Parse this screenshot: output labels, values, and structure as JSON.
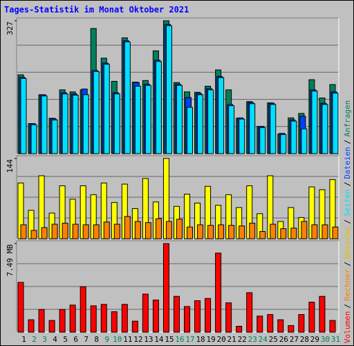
{
  "chart_data": [
    {
      "type": "bar",
      "title": "Tages-Statistik im Monat Oktober 2021",
      "ylim": [
        0,
        327
      ],
      "yticks": [
        327
      ],
      "series": [
        {
          "name": "Anfragen",
          "color": "#00805c",
          "values": [
            194,
            74,
            145,
            87,
            157,
            152,
            157,
            308,
            235,
            178,
            285,
            176,
            180,
            253,
            327,
            175,
            152,
            151,
            166,
            206,
            157,
            87,
            128,
            67,
            125,
            48,
            88,
            99,
            182,
            137,
            170
          ]
        },
        {
          "name": "Dateien",
          "color": "#0040ff",
          "values": [
            188,
            74,
            145,
            86,
            150,
            147,
            159,
            205,
            223,
            150,
            278,
            175,
            171,
            230,
            318,
            171,
            138,
            148,
            160,
            190,
            121,
            88,
            126,
            67,
            124,
            50,
            83,
            92,
            157,
            124,
            152
          ]
        },
        {
          "name": "Seiten",
          "color": "#00e0ff",
          "values": [
            185,
            71,
            142,
            83,
            147,
            144,
            145,
            202,
            220,
            147,
            275,
            166,
            168,
            227,
            315,
            168,
            114,
            145,
            157,
            187,
            118,
            85,
            123,
            64,
            121,
            47,
            80,
            61,
            154,
            121,
            149
          ]
        }
      ]
    },
    {
      "type": "bar",
      "ylim": [
        0,
        144
      ],
      "yticks": [
        144
      ],
      "series": [
        {
          "name": "Besuche",
          "color": "#ffff00",
          "values": [
            100,
            51,
            113,
            46,
            95,
            71,
            95,
            79,
            100,
            65,
            98,
            54,
            108,
            66,
            144,
            58,
            80,
            64,
            94,
            60,
            79,
            56,
            95,
            45,
            113,
            31,
            56,
            38,
            93,
            88,
            106
          ]
        },
        {
          "name": "Rechner",
          "color": "#ff8000",
          "values": [
            25,
            15,
            20,
            26,
            28,
            26,
            25,
            25,
            30,
            26,
            40,
            31,
            29,
            36,
            31,
            35,
            21,
            25,
            24,
            25,
            24,
            23,
            28,
            13,
            26,
            18,
            19,
            31,
            25,
            25,
            21
          ]
        }
      ]
    },
    {
      "type": "bar",
      "ylim": [
        0,
        7.49
      ],
      "yticks": [
        {
          "value": 7.49,
          "label": "7.49 MB"
        }
      ],
      "series": [
        {
          "name": "Volumen",
          "color": "#ff0000",
          "values": [
            4.21,
            1.05,
            1.92,
            0.99,
            1.92,
            2.29,
            3.84,
            2.23,
            2.35,
            1.73,
            2.35,
            0.93,
            3.22,
            2.72,
            7.49,
            3.03,
            2.17,
            2.66,
            2.85,
            6.69,
            2.48,
            0.5,
            3.34,
            1.36,
            1.49,
            1.05,
            0.56,
            1.49,
            2.54,
            3.03,
            0.99
          ]
        }
      ],
      "categories": [
        "1",
        "2",
        "3",
        "4",
        "5",
        "6",
        "7",
        "8",
        "9",
        "10",
        "11",
        "12",
        "13",
        "14",
        "15",
        "16",
        "17",
        "18",
        "19",
        "20",
        "21",
        "22",
        "23",
        "24",
        "25",
        "26",
        "27",
        "28",
        "29",
        "30",
        "31"
      ],
      "category_colors": [
        "#000000",
        "#00805c",
        "#00805c",
        "#000000",
        "#000000",
        "#000000",
        "#000000",
        "#000000",
        "#00805c",
        "#00805c",
        "#000000",
        "#000000",
        "#000000",
        "#000000",
        "#000000",
        "#00805c",
        "#00805c",
        "#000000",
        "#000000",
        "#000000",
        "#000000",
        "#000000",
        "#00805c",
        "#00805c",
        "#000000",
        "#000000",
        "#000000",
        "#000000",
        "#000000",
        "#00805c",
        "#00805c"
      ],
      "legend_separator": "/"
    }
  ]
}
